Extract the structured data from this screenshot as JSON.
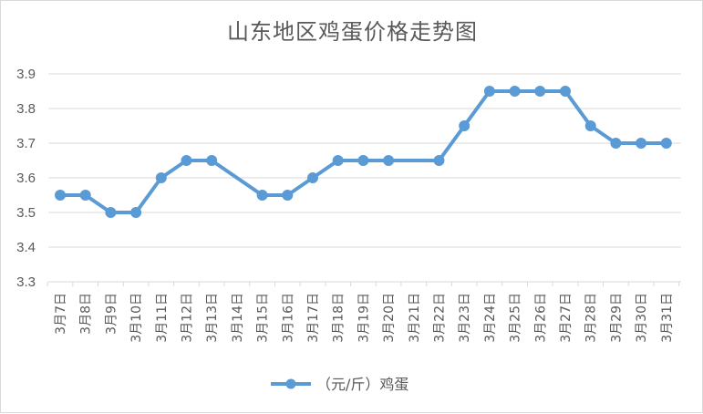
{
  "chart_data": {
    "type": "line",
    "title": "山东地区鸡蛋价格走势图",
    "xlabel": "",
    "ylabel": "",
    "categories": [
      "3月7日",
      "3月8日",
      "3月9日",
      "3月10日",
      "3月11日",
      "3月12日",
      "3月13日",
      "3月14日",
      "3月15日",
      "3月16日",
      "3月17日",
      "3月18日",
      "3月19日",
      "3月20日",
      "3月21日",
      "3月22日",
      "3月23日",
      "3月24日",
      "3月25日",
      "3月26日",
      "3月27日",
      "3月28日",
      "3月29日",
      "3月30日",
      "3月31日"
    ],
    "series": [
      {
        "name": "（元/斤）鸡蛋",
        "values": [
          3.55,
          3.55,
          3.5,
          3.5,
          3.6,
          3.65,
          3.65,
          null,
          3.55,
          3.55,
          3.6,
          3.65,
          3.65,
          3.65,
          null,
          3.65,
          3.75,
          3.85,
          3.85,
          3.85,
          3.85,
          3.75,
          3.7,
          3.7,
          3.7
        ]
      }
    ],
    "ylim": [
      3.3,
      3.9
    ],
    "yticks": [
      "3.3",
      "3.4",
      "3.5",
      "3.6",
      "3.7",
      "3.8",
      "3.9"
    ],
    "grid": true,
    "legend_position": "bottom",
    "colors": {
      "series": "#5b9bd5",
      "grid": "#d9d9d9",
      "text": "#595959"
    }
  }
}
